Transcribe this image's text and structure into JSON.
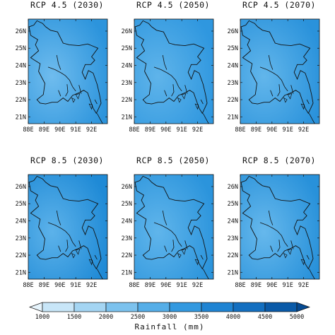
{
  "panels": [
    {
      "title": "RCP 4.5 (2030)",
      "shade": "#2c94dc",
      "light": "#6fbcee"
    },
    {
      "title": "RCP 4.5 (2050)",
      "shade": "#2f97df",
      "light": "#5fb4ea"
    },
    {
      "title": "RCP 4.5 (2070)",
      "shade": "#2a92db",
      "light": "#62b6eb"
    },
    {
      "title": "RCP 8.5 (2030)",
      "shade": "#1f8ad6",
      "light": "#5cb2ea"
    },
    {
      "title": "RCP 8.5 (2050)",
      "shade": "#2b94dc",
      "light": "#60b5eb"
    },
    {
      "title": "RCP 8.5 (2070)",
      "shade": "#2891da",
      "light": "#66b8ec"
    }
  ],
  "axes": {
    "lat_labels": [
      "26N",
      "25N",
      "24N",
      "23N",
      "22N",
      "21N"
    ],
    "lon_labels": [
      "88E",
      "89E",
      "90E",
      "91E",
      "92E"
    ]
  },
  "legend": {
    "title": "Rainfall (mm)",
    "ticks": [
      "1000",
      "1500",
      "2000",
      "2500",
      "3000",
      "3500",
      "4000",
      "4500",
      "5000"
    ],
    "colors": [
      "#e6f4fc",
      "#c8e6f8",
      "#a4d5f3",
      "#7cc2ee",
      "#55aee8",
      "#3399e0",
      "#1f84d3",
      "#136fc0",
      "#0a5aa8",
      "#064a92"
    ]
  }
}
